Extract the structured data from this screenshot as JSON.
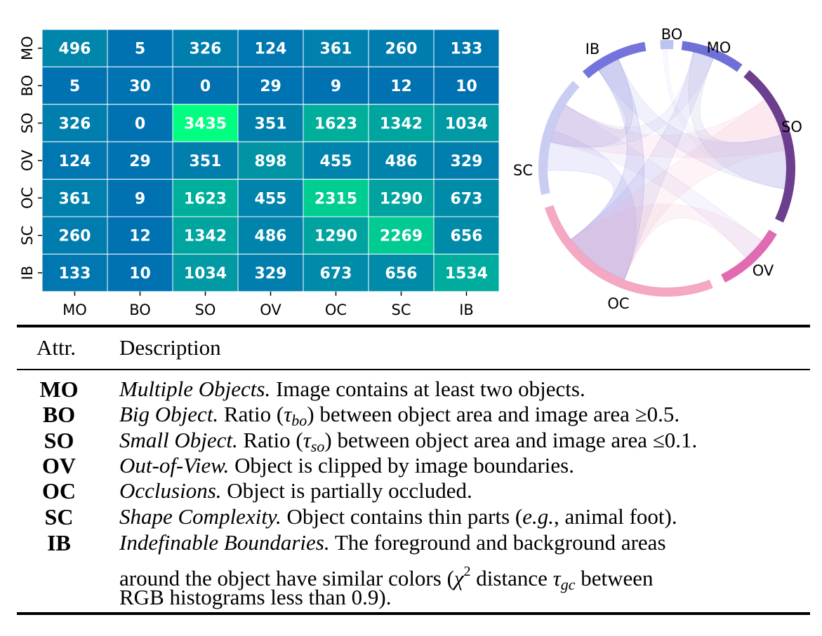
{
  "chart_data": [
    {
      "type": "heatmap",
      "row_labels": [
        "MO",
        "BO",
        "SO",
        "OV",
        "OC",
        "SC",
        "IB"
      ],
      "col_labels": [
        "MO",
        "BO",
        "SO",
        "OV",
        "OC",
        "SC",
        "IB"
      ],
      "values": [
        [
          496,
          5,
          326,
          124,
          361,
          260,
          133
        ],
        [
          5,
          30,
          0,
          29,
          9,
          12,
          10
        ],
        [
          326,
          0,
          3435,
          351,
          1623,
          1342,
          1034
        ],
        [
          124,
          29,
          351,
          898,
          455,
          486,
          329
        ],
        [
          361,
          9,
          1623,
          455,
          2315,
          1290,
          673
        ],
        [
          260,
          12,
          1342,
          486,
          1290,
          2269,
          656
        ],
        [
          133,
          10,
          1034,
          329,
          673,
          656,
          1534
        ]
      ],
      "colormap": {
        "low": "#0072b2",
        "mid": "#00b39a",
        "high": "#00ff80"
      }
    },
    {
      "type": "chord",
      "groups": [
        {
          "label": "BO",
          "color": "#b9c4f0"
        },
        {
          "label": "MO",
          "color": "#6f6fd8"
        },
        {
          "label": "SO",
          "color": "#6b3e8e"
        },
        {
          "label": "OV",
          "color": "#e06bb0"
        },
        {
          "label": "OC",
          "color": "#f4a8c2"
        },
        {
          "label": "SC",
          "color": "#c9cdf2"
        },
        {
          "label": "IB",
          "color": "#7474dc"
        }
      ]
    }
  ],
  "table": {
    "header": {
      "attr": "Attr.",
      "desc": "Description"
    },
    "rows": [
      {
        "code": "MO",
        "name": "Multiple Objects.",
        "text": " Image contains at least two objects."
      },
      {
        "code": "BO",
        "name": "Big Object.",
        "text_a": " Ratio (",
        "sym": "τ",
        "sub": "bo",
        "text_b": ") between object area and image area ≥0.5."
      },
      {
        "code": "SO",
        "name": "Small Object.",
        "text_a": " Ratio (",
        "sym": "τ",
        "sub": "so",
        "text_b": ") between object area and image area ≤0.1."
      },
      {
        "code": "OV",
        "name": "Out-of-View.",
        "text": " Object is clipped by image boundaries."
      },
      {
        "code": "OC",
        "name": "Occlusions.",
        "text": " Object is partially occluded."
      },
      {
        "code": "SC",
        "name": "Shape Complexity.",
        "text_a": " Object contains thin parts (",
        "eg": "e.g.",
        "text_b": ", animal foot)."
      },
      {
        "code": "IB",
        "name": "Indefinable Boundaries.",
        "text_a": " The foreground and background areas",
        "line2_a": "around the object have similar colors (",
        "chi": "χ",
        "chi_sup": "2",
        "line2_b": " distance ",
        "sym": "τ",
        "sub": "gc",
        "line2_c": " between",
        "line3": "RGB histograms less than 0.9)."
      }
    ]
  }
}
